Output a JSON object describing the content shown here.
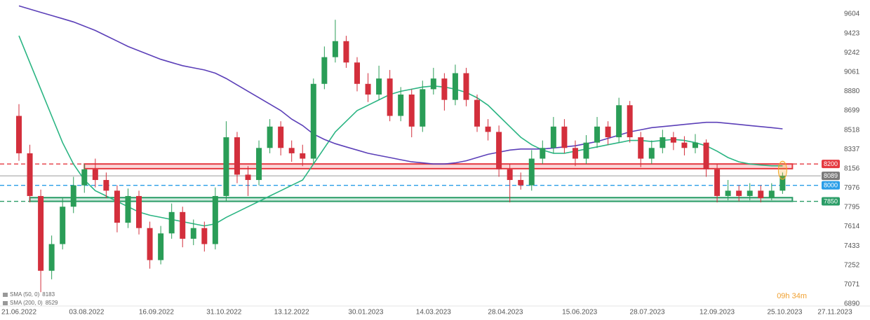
{
  "chart_data": {
    "type": "candlestick",
    "x": [
      "21.06.2022",
      "28.06.2022",
      "05.07.2022",
      "12.07.2022",
      "19.07.2022",
      "26.07.2022",
      "02.08.2022",
      "09.08.2022",
      "16.08.2022",
      "23.08.2022",
      "30.08.2022",
      "06.09.2022",
      "13.09.2022",
      "20.09.2022",
      "27.09.2022",
      "04.10.2022",
      "11.10.2022",
      "18.10.2022",
      "25.10.2022",
      "01.11.2022",
      "08.11.2022",
      "15.11.2022",
      "22.11.2022",
      "29.11.2022",
      "06.12.2022",
      "13.12.2022",
      "20.12.2022",
      "27.12.2022",
      "03.01.2023",
      "10.01.2023",
      "17.01.2023",
      "24.01.2023",
      "31.01.2023",
      "07.02.2023",
      "14.02.2023",
      "21.02.2023",
      "28.02.2023",
      "07.03.2023",
      "14.03.2023",
      "21.03.2023",
      "28.03.2023",
      "04.04.2023",
      "11.04.2023",
      "18.04.2023",
      "25.04.2023",
      "02.05.2023",
      "09.05.2023",
      "16.05.2023",
      "23.05.2023",
      "30.05.2023",
      "06.06.2023",
      "13.06.2023",
      "20.06.2023",
      "27.06.2023",
      "04.07.2023",
      "11.07.2023",
      "18.07.2023",
      "25.07.2023",
      "01.08.2023",
      "08.08.2023",
      "15.08.2023",
      "22.08.2023",
      "29.08.2023",
      "05.09.2023",
      "12.09.2023",
      "19.09.2023",
      "26.09.2023",
      "03.10.2023",
      "10.10.2023",
      "17.10.2023",
      "24.10.2023"
    ],
    "open": [
      8650,
      8300,
      7900,
      7200,
      7450,
      7800,
      8000,
      8150,
      8050,
      7950,
      7650,
      7900,
      7600,
      7300,
      7550,
      7750,
      7500,
      7600,
      7450,
      7900,
      8450,
      8100,
      8050,
      8350,
      8550,
      8350,
      8300,
      8250,
      8950,
      9200,
      9350,
      9150,
      8950,
      8850,
      9000,
      8650,
      8850,
      8550,
      8900,
      9000,
      8800,
      9050,
      8800,
      8550,
      8500,
      8150,
      8050,
      8000,
      8250,
      8350,
      8550,
      8350,
      8250,
      8400,
      8550,
      8450,
      8750,
      8450,
      8250,
      8350,
      8450,
      8400,
      8350,
      8400,
      8150,
      7900,
      7950,
      7900,
      7950,
      7880,
      7950
    ],
    "high": [
      8760,
      8380,
      7960,
      7530,
      7880,
      8080,
      8200,
      8250,
      8120,
      8000,
      7970,
      7950,
      7660,
      7620,
      7830,
      7800,
      7680,
      7660,
      7980,
      8600,
      8500,
      8180,
      8420,
      8620,
      8600,
      8420,
      8380,
      9000,
      9300,
      9550,
      9400,
      9200,
      9050,
      9120,
      9080,
      8920,
      8900,
      8980,
      9100,
      9050,
      9130,
      9100,
      8850,
      8620,
      8560,
      8200,
      8120,
      8330,
      8420,
      8640,
      8620,
      8420,
      8470,
      8640,
      8600,
      8820,
      8790,
      8500,
      8420,
      8520,
      8500,
      8460,
      8480,
      8430,
      8200,
      8050,
      8000,
      8020,
      8000,
      8020,
      8120
    ],
    "low": [
      8230,
      7840,
      7000,
      7120,
      7400,
      7740,
      7930,
      7980,
      7880,
      7560,
      7600,
      7540,
      7220,
      7260,
      7500,
      7420,
      7440,
      7380,
      7400,
      7850,
      8020,
      7900,
      8000,
      8300,
      8280,
      8220,
      8180,
      8200,
      8900,
      9150,
      9100,
      8880,
      8780,
      8800,
      8600,
      8600,
      8450,
      8500,
      8850,
      8700,
      8750,
      8740,
      8500,
      8420,
      8080,
      7840,
      7960,
      7950,
      8200,
      8300,
      8300,
      8180,
      8200,
      8350,
      8380,
      8400,
      8400,
      8170,
      8200,
      8300,
      8330,
      8280,
      8300,
      8080,
      7840,
      7860,
      7850,
      7860,
      7840,
      7860,
      7920
    ],
    "close": [
      8300,
      7900,
      7200,
      7450,
      7800,
      8000,
      8150,
      8050,
      7950,
      7650,
      7900,
      7600,
      7300,
      7550,
      7750,
      7500,
      7600,
      7450,
      7900,
      8450,
      8100,
      8050,
      8350,
      8550,
      8350,
      8300,
      8250,
      8950,
      9200,
      9350,
      9150,
      8950,
      8850,
      9000,
      8650,
      8850,
      8550,
      8900,
      9000,
      8800,
      9050,
      8800,
      8550,
      8500,
      8150,
      8050,
      8000,
      8250,
      8350,
      8550,
      8350,
      8250,
      8400,
      8550,
      8450,
      8750,
      8450,
      8250,
      8350,
      8450,
      8400,
      8350,
      8400,
      8150,
      7900,
      7950,
      7900,
      7950,
      7880,
      7950,
      8089
    ],
    "up_color": "#2a9d57",
    "down_color": "#d32f3c",
    "series": [
      {
        "name": "SMA (50, 0)",
        "last_value": 8183,
        "color": "#2bb583",
        "values": [
          9400,
          9150,
          8900,
          8650,
          8400,
          8200,
          8050,
          7950,
          7900,
          7850,
          7800,
          7750,
          7720,
          7700,
          7680,
          7660,
          7640,
          7620,
          7640,
          7700,
          7750,
          7800,
          7850,
          7900,
          7950,
          8000,
          8050,
          8200,
          8350,
          8500,
          8600,
          8700,
          8750,
          8800,
          8850,
          8880,
          8900,
          8920,
          8930,
          8920,
          8900,
          8870,
          8820,
          8750,
          8650,
          8550,
          8450,
          8380,
          8330,
          8300,
          8300,
          8320,
          8340,
          8360,
          8380,
          8400,
          8420,
          8420,
          8410,
          8420,
          8430,
          8420,
          8400,
          8370,
          8320,
          8260,
          8220,
          8200,
          8190,
          8183,
          8183
        ]
      },
      {
        "name": "SMA (200, 0)",
        "last_value": 8529,
        "color": "#5b3fb8",
        "values": [
          9680,
          9650,
          9620,
          9590,
          9560,
          9530,
          9490,
          9450,
          9400,
          9350,
          9300,
          9260,
          9220,
          9180,
          9150,
          9120,
          9100,
          9080,
          9050,
          9000,
          8940,
          8880,
          8820,
          8760,
          8700,
          8620,
          8560,
          8480,
          8430,
          8390,
          8360,
          8330,
          8300,
          8280,
          8260,
          8240,
          8220,
          8210,
          8200,
          8200,
          8210,
          8230,
          8260,
          8290,
          8310,
          8330,
          8340,
          8340,
          8340,
          8350,
          8360,
          8370,
          8390,
          8410,
          8440,
          8470,
          8500,
          8520,
          8540,
          8550,
          8560,
          8570,
          8580,
          8590,
          8590,
          8580,
          8570,
          8560,
          8550,
          8540,
          8529
        ]
      }
    ],
    "levels": [
      {
        "value": 8200,
        "color": "#e53940"
      },
      {
        "value": 8000,
        "color": "#2a9ee8"
      },
      {
        "value": 7850,
        "color": "#2a9d67"
      }
    ],
    "zones": [
      {
        "start": "02.08.2022",
        "from": 8156,
        "to": 8200,
        "color": "#e53940"
      },
      {
        "start": "28.06.2022",
        "from": 7850,
        "to": 7885,
        "color": "#2a9d67"
      }
    ],
    "current_price": 8089,
    "countdown": "09h 34m",
    "xlim": [
      "21.06.2022",
      "27.11.2023"
    ],
    "xticks": [
      "21.06.2022",
      "03.08.2022",
      "16.09.2022",
      "31.10.2022",
      "13.12.2022",
      "30.01.2023",
      "14.03.2023",
      "28.04.2023",
      "15.06.2023",
      "28.07.2023",
      "12.09.2023",
      "25.10.2023",
      "27.11.2023"
    ],
    "ylim": [
      6890,
      9604
    ],
    "yticks": [
      9604,
      9423,
      9242,
      9061,
      8880,
      8699,
      8518,
      8337,
      8156,
      7976,
      7795,
      7614,
      7433,
      7252,
      7071,
      6890
    ],
    "grid": false
  }
}
